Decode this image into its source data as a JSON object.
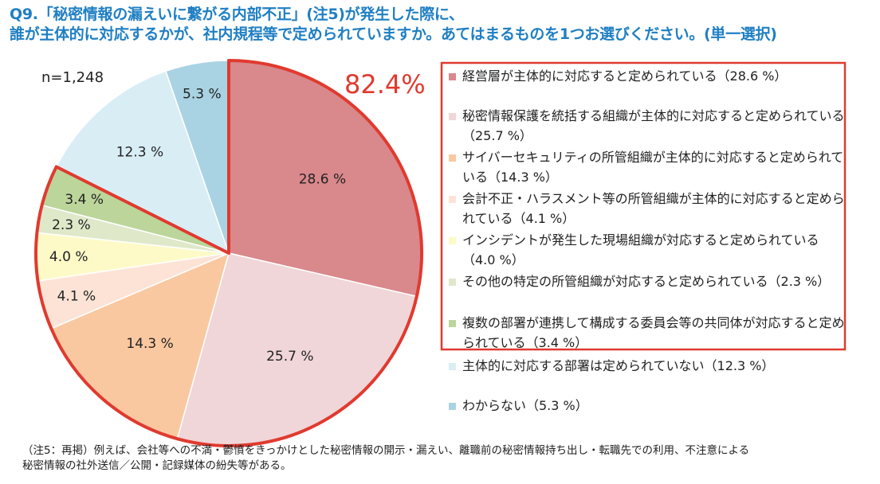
{
  "title": {
    "line1": "Q9.「秘密情報の漏えいに繋がる内部不正」(注5)が発生した際に、",
    "line2": "誰が主体的に対応するかが、社内規程等で定められていますか。あてはまるものを1つお選びください。(単一選択)"
  },
  "chart_data": {
    "type": "pie",
    "n_label": "n=1,248",
    "highlight_total": "82.4%",
    "colors": {
      "highlight": "#e03a2f"
    },
    "slices": [
      {
        "name": "経営層が主体的に対応すると定められている",
        "value": 28.6,
        "label": "28.6 %",
        "legend": "経営層が主体的に対応すると定められている（28.6 %）",
        "color": "#d9888c"
      },
      {
        "name": "秘密情報保護を統括する組織が主体的に対応すると定められている",
        "value": 25.7,
        "label": "25.7 %",
        "legend": "秘密情報保護を統括する組織が主体的に対応すると定められている（25.7 %）",
        "color": "#f0d6d8"
      },
      {
        "name": "サイバーセキュリティの所管組織が主体的に対応すると定められている",
        "value": 14.3,
        "label": "14.3 %",
        "legend": "サイバーセキュリティの所管組織が主体的に対応すると定められている（14.3 %）",
        "color": "#fac8a0"
      },
      {
        "name": "会計不正・ハラスメント等の所管組織が主体的に対応すると定められている",
        "value": 4.1,
        "label": "4.1 %",
        "legend": "会計不正・ハラスメント等の所管組織が主体的に対応すると定められている（4.1 %）",
        "color": "#fde3d6"
      },
      {
        "name": "インシデントが発生した現場組織が対応すると定められている",
        "value": 4.0,
        "label": "4.0 %",
        "legend": "インシデントが発生した現場組織が対応すると定められている（4.0 %）",
        "color": "#fdfac8"
      },
      {
        "name": "その他の特定の所管組織が対応すると定められている",
        "value": 2.3,
        "label": "2.3 %",
        "legend": "その他の特定の所管組織が対応すると定められている（2.3 %）",
        "color": "#dfe8c9"
      },
      {
        "name": "複数の部署が連携して構成する委員会等の共同体が対応すると定められている",
        "value": 3.4,
        "label": "3.4 %",
        "legend": "複数の部署が連携して構成する委員会等の共同体が対応すると定められている（3.4 %）",
        "color": "#bcd59a"
      },
      {
        "name": "主体的に対応する部署は定められていない",
        "value": 12.3,
        "label": "12.3 %",
        "legend": "主体的に対応する部署は定められていない（12.3 %）",
        "color": "#d9edf5"
      },
      {
        "name": "わからない",
        "value": 5.3,
        "label": "5.3 %",
        "legend": "わからない（5.3 %）",
        "color": "#a9d3e3"
      }
    ]
  },
  "footnote": {
    "line1": "（注5：再掲）例えば、会社等への不満・鬱憤をきっかけとした秘密情報の開示・漏えい、離職前の秘密情報持ち出し・転職先での利用、不注意による",
    "line2": "秘密情報の社外送信／公開・記録媒体の紛失等がある。"
  }
}
